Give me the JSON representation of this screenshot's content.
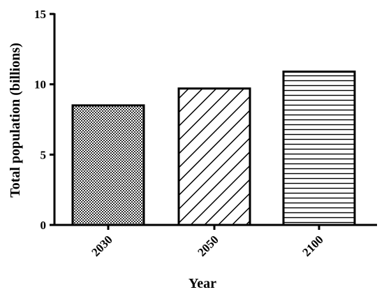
{
  "chart_data": {
    "type": "bar",
    "categories": [
      "2030",
      "2050",
      "2100"
    ],
    "values": [
      8.5,
      9.7,
      10.9
    ],
    "patterns": [
      "checkered",
      "diagonal-lines",
      "horizontal-lines"
    ],
    "title": "",
    "xlabel": "Year",
    "ylabel": "Total population (billions)",
    "ylim": [
      0,
      15
    ],
    "yticks": [
      0,
      5,
      10,
      15
    ],
    "ytick_labels": [
      "0",
      "5",
      "10",
      "15"
    ],
    "grid": false,
    "legend": false,
    "bar_outline_color": "#000000",
    "pattern_color": "#000000"
  }
}
